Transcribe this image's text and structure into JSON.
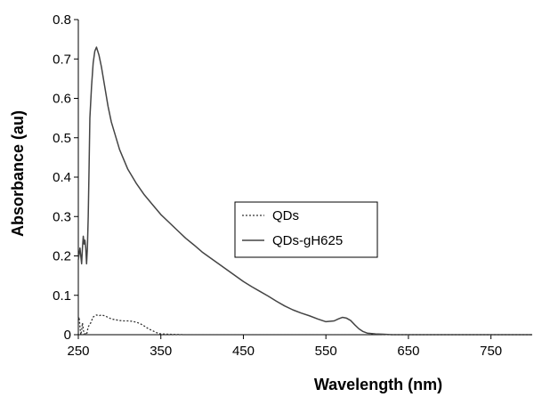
{
  "chart_data": {
    "type": "line",
    "title": "",
    "xlabel": "Wavelength (nm)",
    "ylabel": "Absorbance (au)",
    "xlim": [
      250,
      800
    ],
    "ylim": [
      0,
      0.8
    ],
    "xticks": [
      250,
      350,
      450,
      550,
      650,
      750
    ],
    "yticks": [
      0,
      0.1,
      0.2,
      0.3,
      0.4,
      0.5,
      0.6,
      0.7,
      0.8
    ],
    "legend_position": "center-right",
    "grid": false,
    "series": [
      {
        "name": "QDs",
        "style": "dotted",
        "color": "#333333",
        "x": [
          250,
          251,
          252,
          253,
          254,
          255,
          256,
          257,
          258,
          259,
          260,
          262,
          265,
          268,
          272,
          275,
          278,
          282,
          285,
          290,
          295,
          300,
          305,
          310,
          315,
          320,
          325,
          330,
          335,
          340,
          345,
          350,
          360,
          380,
          400,
          450,
          500,
          550,
          600,
          650,
          700,
          750,
          800
        ],
        "values": [
          0.04,
          0.045,
          0.02,
          0.0,
          0.01,
          0.03,
          0.015,
          0.0,
          0.005,
          0.0,
          0.0,
          0.02,
          0.03,
          0.045,
          0.05,
          0.048,
          0.05,
          0.048,
          0.045,
          0.04,
          0.038,
          0.036,
          0.035,
          0.035,
          0.034,
          0.032,
          0.028,
          0.022,
          0.015,
          0.01,
          0.005,
          0.002,
          0.001,
          0.0,
          0.0,
          0.0,
          0.0,
          0.0,
          0.0,
          0.0,
          0.0,
          0.0,
          0.0
        ]
      },
      {
        "name": "QDs-gH625",
        "style": "solid",
        "color": "#444444",
        "x": [
          250,
          252,
          254,
          255,
          256,
          257,
          258,
          259,
          260,
          261,
          262,
          263,
          264,
          266,
          268,
          270,
          272,
          275,
          278,
          282,
          286,
          290,
          300,
          310,
          320,
          330,
          340,
          350,
          360,
          370,
          380,
          390,
          400,
          410,
          420,
          430,
          440,
          450,
          460,
          470,
          480,
          490,
          500,
          510,
          520,
          530,
          540,
          550,
          560,
          565,
          570,
          575,
          580,
          585,
          590,
          595,
          600,
          610,
          620,
          630,
          650,
          700,
          750,
          800
        ],
        "values": [
          0.19,
          0.22,
          0.18,
          0.22,
          0.25,
          0.23,
          0.24,
          0.22,
          0.18,
          0.22,
          0.3,
          0.42,
          0.55,
          0.63,
          0.69,
          0.72,
          0.73,
          0.71,
          0.68,
          0.63,
          0.58,
          0.54,
          0.47,
          0.42,
          0.385,
          0.355,
          0.33,
          0.305,
          0.285,
          0.265,
          0.245,
          0.228,
          0.21,
          0.195,
          0.18,
          0.165,
          0.15,
          0.135,
          0.122,
          0.11,
          0.098,
          0.085,
          0.073,
          0.063,
          0.055,
          0.048,
          0.04,
          0.033,
          0.035,
          0.04,
          0.044,
          0.042,
          0.036,
          0.025,
          0.015,
          0.008,
          0.004,
          0.002,
          0.001,
          0.0,
          0.0,
          0.0,
          0.0,
          0.0
        ]
      }
    ]
  }
}
